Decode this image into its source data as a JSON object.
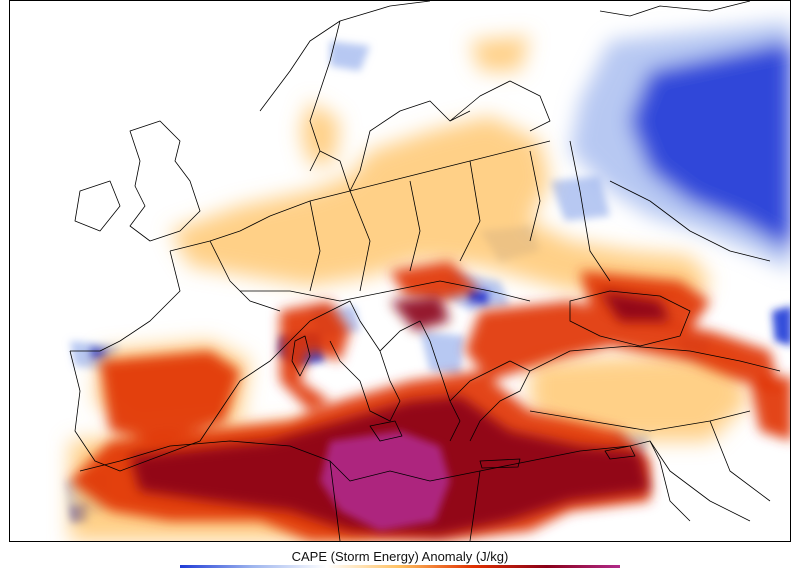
{
  "map": {
    "title": "CAPE (Storm Energy) Anomaly (J/kg)",
    "region": "Europe & Mediterranean",
    "palette": {
      "strong_negative": "#1f3bd6",
      "weak_negative": "#9fb6ee",
      "neutral": "#ffffff",
      "weak_positive": "#ffc060",
      "moderate_positive": "#e03000",
      "strong_positive": "#8a0018",
      "extreme_positive": "#b02a8a",
      "coastline": "#000000"
    }
  }
}
